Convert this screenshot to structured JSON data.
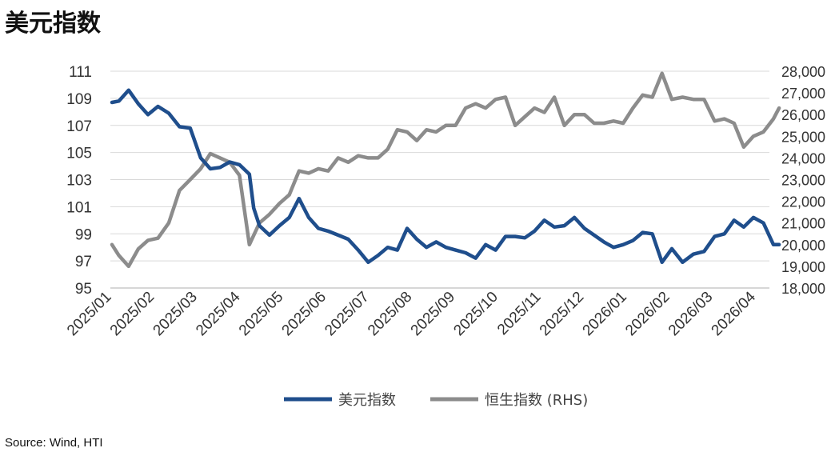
{
  "title": "美元指数",
  "source": "Source: Wind, HTI",
  "chart_data": {
    "type": "line",
    "xlabels": [
      "2025/01",
      "2025/02",
      "2025/03",
      "2025/04",
      "2025/05",
      "2025/06",
      "2025/07",
      "2025/08",
      "2025/09",
      "2025/10",
      "2025/11",
      "2025/12",
      "2026/01",
      "2026/02",
      "2026/03",
      "2026/04"
    ],
    "y_left": {
      "ticks": [
        "95",
        "97",
        "99",
        "101",
        "103",
        "105",
        "107",
        "109",
        "111"
      ],
      "ylim": [
        95,
        111
      ]
    },
    "y_right": {
      "ticks": [
        "18,000",
        "19,000",
        "20,000",
        "21,000",
        "22,000",
        "23,000",
        "24,000",
        "25,000",
        "26,000",
        "27,000",
        "28,000"
      ],
      "ylim": [
        18000,
        28000
      ]
    },
    "grid": true,
    "legend_position": "bottom",
    "series": [
      {
        "name": "美元指数",
        "axis": "left",
        "color": "#1f4e8c",
        "points": [
          [
            "2025/01/01",
            108.7
          ],
          [
            "2025/01/06",
            108.8
          ],
          [
            "2025/01/13",
            109.6
          ],
          [
            "2025/01/20",
            108.6
          ],
          [
            "2025/01/27",
            107.8
          ],
          [
            "2025/02/03",
            108.4
          ],
          [
            "2025/02/10",
            107.9
          ],
          [
            "2025/02/17",
            106.9
          ],
          [
            "2025/02/24",
            106.8
          ],
          [
            "2025/03/03",
            104.6
          ],
          [
            "2025/03/10",
            103.8
          ],
          [
            "2025/03/17",
            103.9
          ],
          [
            "2025/03/24",
            104.3
          ],
          [
            "2025/03/31",
            104.1
          ],
          [
            "2025/04/07",
            103.4
          ],
          [
            "2025/04/10",
            100.9
          ],
          [
            "2025/04/14",
            99.6
          ],
          [
            "2025/04/21",
            98.9
          ],
          [
            "2025/04/28",
            99.6
          ],
          [
            "2025/05/05",
            100.2
          ],
          [
            "2025/05/12",
            101.6
          ],
          [
            "2025/05/19",
            100.2
          ],
          [
            "2025/05/26",
            99.4
          ],
          [
            "2025/06/02",
            99.2
          ],
          [
            "2025/06/09",
            98.9
          ],
          [
            "2025/06/16",
            98.6
          ],
          [
            "2025/06/23",
            97.8
          ],
          [
            "2025/06/30",
            96.9
          ],
          [
            "2025/07/07",
            97.4
          ],
          [
            "2025/07/14",
            98.0
          ],
          [
            "2025/07/21",
            97.8
          ],
          [
            "2025/07/28",
            99.4
          ],
          [
            "2025/08/04",
            98.6
          ],
          [
            "2025/08/11",
            98.0
          ],
          [
            "2025/08/18",
            98.4
          ],
          [
            "2025/08/25",
            98.0
          ],
          [
            "2025/09/01",
            97.8
          ],
          [
            "2025/09/08",
            97.6
          ],
          [
            "2025/09/15",
            97.2
          ],
          [
            "2025/09/22",
            98.2
          ],
          [
            "2025/09/29",
            97.8
          ],
          [
            "2025/10/06",
            98.8
          ],
          [
            "2025/10/13",
            98.8
          ],
          [
            "2025/10/20",
            98.7
          ],
          [
            "2025/10/27",
            99.2
          ],
          [
            "2025/11/03",
            100.0
          ],
          [
            "2025/11/10",
            99.5
          ],
          [
            "2025/11/17",
            99.6
          ],
          [
            "2025/11/24",
            100.2
          ],
          [
            "2025/12/01",
            99.4
          ],
          [
            "2025/12/08",
            98.9
          ],
          [
            "2025/12/15",
            98.4
          ],
          [
            "2025/12/22",
            98.0
          ],
          [
            "2025/12/29",
            98.2
          ],
          [
            "2026/01/05",
            98.5
          ],
          [
            "2026/01/12",
            99.1
          ],
          [
            "2026/01/19",
            99.0
          ],
          [
            "2026/01/26",
            96.9
          ],
          [
            "2026/02/02",
            97.9
          ],
          [
            "2026/02/09",
            96.9
          ],
          [
            "2026/02/16",
            97.5
          ],
          [
            "2026/02/23",
            97.7
          ],
          [
            "2026/03/02",
            98.8
          ],
          [
            "2026/03/09",
            99.0
          ],
          [
            "2026/03/16",
            100.0
          ],
          [
            "2026/03/23",
            99.5
          ],
          [
            "2026/03/30",
            100.2
          ],
          [
            "2026/04/06",
            99.8
          ],
          [
            "2026/04/13",
            98.2
          ],
          [
            "2026/04/17",
            98.2
          ]
        ]
      },
      {
        "name": "恒生指数 (RHS)",
        "axis": "right",
        "color": "#8c8c8c",
        "points": [
          [
            "2025/01/01",
            20000
          ],
          [
            "2025/01/06",
            19500
          ],
          [
            "2025/01/13",
            19000
          ],
          [
            "2025/01/20",
            19800
          ],
          [
            "2025/01/27",
            20200
          ],
          [
            "2025/02/03",
            20300
          ],
          [
            "2025/02/10",
            21000
          ],
          [
            "2025/02/17",
            22500
          ],
          [
            "2025/02/24",
            23000
          ],
          [
            "2025/03/03",
            23500
          ],
          [
            "2025/03/10",
            24200
          ],
          [
            "2025/03/17",
            24000
          ],
          [
            "2025/03/24",
            23800
          ],
          [
            "2025/03/31",
            23200
          ],
          [
            "2025/04/07",
            20000
          ],
          [
            "2025/04/14",
            21000
          ],
          [
            "2025/04/21",
            21400
          ],
          [
            "2025/04/28",
            21900
          ],
          [
            "2025/05/05",
            22300
          ],
          [
            "2025/05/12",
            23400
          ],
          [
            "2025/05/19",
            23300
          ],
          [
            "2025/05/26",
            23500
          ],
          [
            "2025/06/02",
            23400
          ],
          [
            "2025/06/09",
            24000
          ],
          [
            "2025/06/16",
            23800
          ],
          [
            "2025/06/23",
            24100
          ],
          [
            "2025/06/30",
            24000
          ],
          [
            "2025/07/07",
            24000
          ],
          [
            "2025/07/14",
            24400
          ],
          [
            "2025/07/21",
            25300
          ],
          [
            "2025/07/28",
            25200
          ],
          [
            "2025/08/04",
            24800
          ],
          [
            "2025/08/11",
            25300
          ],
          [
            "2025/08/18",
            25200
          ],
          [
            "2025/08/25",
            25500
          ],
          [
            "2025/09/01",
            25500
          ],
          [
            "2025/09/08",
            26300
          ],
          [
            "2025/09/15",
            26500
          ],
          [
            "2025/09/22",
            26300
          ],
          [
            "2025/09/29",
            26700
          ],
          [
            "2025/10/06",
            26800
          ],
          [
            "2025/10/13",
            25500
          ],
          [
            "2025/10/20",
            25900
          ],
          [
            "2025/10/27",
            26300
          ],
          [
            "2025/11/03",
            26100
          ],
          [
            "2025/11/10",
            26800
          ],
          [
            "2025/11/17",
            25500
          ],
          [
            "2025/11/24",
            26000
          ],
          [
            "2025/12/01",
            26000
          ],
          [
            "2025/12/08",
            25600
          ],
          [
            "2025/12/15",
            25600
          ],
          [
            "2025/12/22",
            25700
          ],
          [
            "2025/12/29",
            25600
          ],
          [
            "2026/01/05",
            26300
          ],
          [
            "2026/01/12",
            26900
          ],
          [
            "2026/01/19",
            26800
          ],
          [
            "2026/01/26",
            27900
          ],
          [
            "2026/02/02",
            26700
          ],
          [
            "2026/02/09",
            26800
          ],
          [
            "2026/02/16",
            26700
          ],
          [
            "2026/02/23",
            26700
          ],
          [
            "2026/03/02",
            25700
          ],
          [
            "2026/03/09",
            25800
          ],
          [
            "2026/03/16",
            25600
          ],
          [
            "2026/03/23",
            24500
          ],
          [
            "2026/03/30",
            25000
          ],
          [
            "2026/04/06",
            25200
          ],
          [
            "2026/04/13",
            25800
          ],
          [
            "2026/04/17",
            26300
          ]
        ]
      }
    ]
  }
}
